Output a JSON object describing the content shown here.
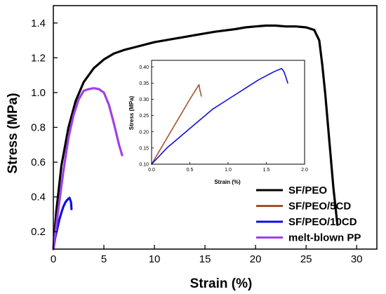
{
  "chart_data": [
    {
      "type": "line",
      "xlabel": "Strain (%)",
      "ylabel": "Stress (MPa)",
      "xlim": [
        0,
        32
      ],
      "ylim": [
        0.1,
        1.5
      ],
      "xticks": [
        0,
        5,
        10,
        15,
        20,
        25,
        30
      ],
      "yticks": [
        0.2,
        0.4,
        0.6,
        0.8,
        1.0,
        1.2,
        1.4
      ],
      "ytick_decimals": 1,
      "legend_position": "bottom-right",
      "series": [
        {
          "name": "SF/PEO",
          "color": "#000000",
          "x": [
            0,
            0.3,
            0.8,
            1.5,
            2.2,
            3,
            4,
            5,
            6,
            7,
            8,
            10,
            12,
            14,
            16,
            18,
            19,
            20,
            21,
            22,
            23,
            24,
            25,
            25.8,
            26.3,
            26.6,
            26.9,
            27.3,
            27.7,
            28.1
          ],
          "y": [
            0.1,
            0.32,
            0.58,
            0.8,
            0.95,
            1.06,
            1.14,
            1.19,
            1.225,
            1.245,
            1.26,
            1.29,
            1.31,
            1.33,
            1.35,
            1.365,
            1.375,
            1.38,
            1.385,
            1.385,
            1.38,
            1.38,
            1.375,
            1.36,
            1.3,
            1.16,
            0.99,
            0.72,
            0.45,
            0.24
          ]
        },
        {
          "name": "SF/PEO/5CD",
          "color": "#a0522d",
          "x": [],
          "y": []
        },
        {
          "name": "SF/PEO/10CD",
          "color": "#1010e0",
          "x": [
            0,
            0.2,
            0.4,
            0.6,
            0.8,
            1.0,
            1.2,
            1.4,
            1.6,
            1.75,
            1.8
          ],
          "y": [
            0.1,
            0.17,
            0.22,
            0.27,
            0.31,
            0.345,
            0.37,
            0.385,
            0.395,
            0.37,
            0.33
          ]
        },
        {
          "name": "melt-blown PP",
          "color": "#a040e8",
          "x": [
            0,
            0.5,
            1,
            1.5,
            2,
            2.5,
            3,
            3.5,
            4,
            4.5,
            5,
            5.5,
            6,
            6.5,
            6.8
          ],
          "y": [
            0.1,
            0.33,
            0.55,
            0.74,
            0.87,
            0.96,
            1.01,
            1.02,
            1.025,
            1.02,
            1.0,
            0.93,
            0.82,
            0.7,
            0.64
          ]
        }
      ]
    },
    {
      "type": "line",
      "role": "inset",
      "xlabel": "Strain (%)",
      "ylabel": "Stress (MPa)",
      "xlim": [
        0,
        2.0
      ],
      "ylim": [
        0.1,
        0.42
      ],
      "xticks": [
        0.0,
        0.5,
        1.0,
        1.5,
        2.0
      ],
      "yticks": [
        0.1,
        0.15,
        0.2,
        0.25,
        0.3,
        0.35,
        0.4
      ],
      "xtick_decimals": 1,
      "ytick_decimals": 2,
      "series": [
        {
          "name": "SF/PEO/5CD",
          "color": "#a0522d",
          "x": [
            0,
            0.1,
            0.2,
            0.3,
            0.4,
            0.5,
            0.58,
            0.62,
            0.63,
            0.65
          ],
          "y": [
            0.1,
            0.14,
            0.18,
            0.22,
            0.26,
            0.3,
            0.33,
            0.345,
            0.33,
            0.31
          ]
        },
        {
          "name": "SF/PEO/10CD",
          "color": "#1010e0",
          "x": [
            0,
            0.2,
            0.4,
            0.6,
            0.8,
            1.0,
            1.2,
            1.4,
            1.6,
            1.7,
            1.73,
            1.76,
            1.78
          ],
          "y": [
            0.1,
            0.15,
            0.19,
            0.23,
            0.27,
            0.3,
            0.33,
            0.36,
            0.385,
            0.395,
            0.385,
            0.365,
            0.35
          ]
        }
      ]
    }
  ]
}
